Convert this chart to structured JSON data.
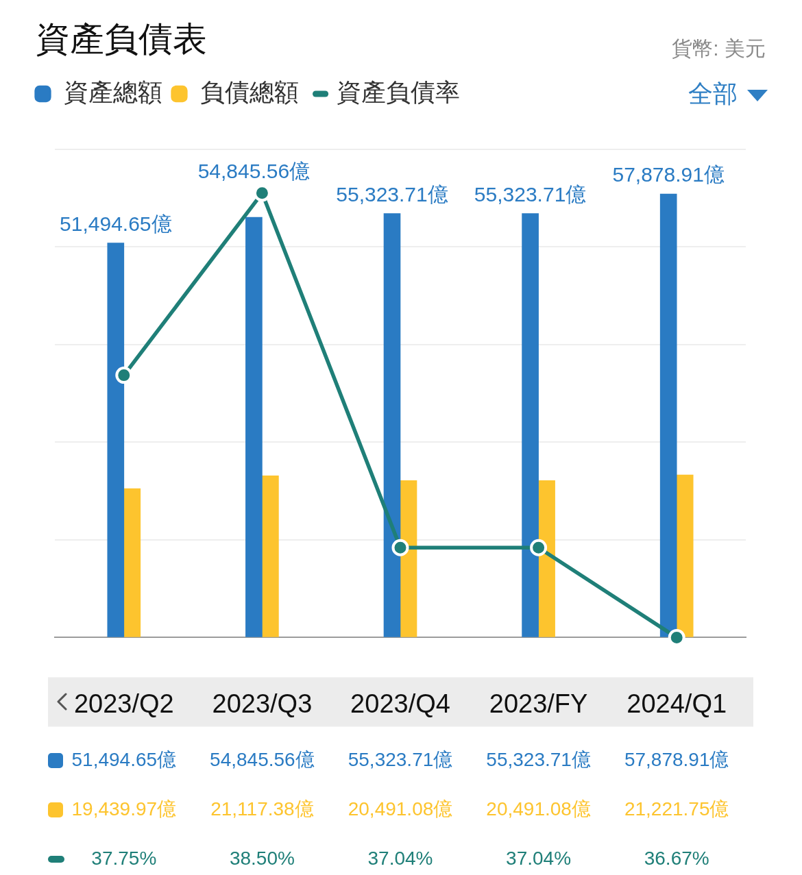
{
  "chart_data": {
    "type": "bar",
    "title": "資產負債表",
    "subtitle": "貨幣: 美元",
    "categories": [
      "2023/Q2",
      "2023/Q3",
      "2023/Q4",
      "2023/FY",
      "2024/Q1"
    ],
    "series": [
      {
        "name": "資產總額",
        "color": "#2a7bc3",
        "values": [
          51494.65,
          54845.56,
          55323.71,
          55323.71,
          57878.91
        ],
        "value_labels": [
          "51,494.65億",
          "54,845.56億",
          "55,323.71億",
          "55,323.71億",
          "57,878.91億"
        ]
      },
      {
        "name": "負債總額",
        "color": "#fdc42e",
        "values": [
          19439.97,
          21117.38,
          20491.08,
          20491.08,
          21221.75
        ],
        "value_labels": [
          "19,439.97億",
          "21,117.38億",
          "20,491.08億",
          "20,491.08億",
          "21,221.75億"
        ]
      },
      {
        "name": "資產負債率",
        "type": "line",
        "axis": "y2",
        "color": "#1f7f78",
        "values": [
          37.75,
          38.5,
          37.04,
          37.04,
          36.67
        ],
        "value_labels": [
          "37.75%",
          "38.50%",
          "37.04%",
          "37.04%",
          "36.67%"
        ]
      }
    ],
    "ylim": [
      0,
      63700
    ],
    "yticks": [
      {
        "value": 0,
        "label": null
      },
      {
        "value": 12740,
        "label": null
      },
      {
        "value": 25480,
        "label": null
      },
      {
        "value": 38220,
        "label": null
      },
      {
        "value": 50960,
        "label": null
      },
      {
        "value": 63700,
        "label": null
      }
    ],
    "y2lim": [
      36.67,
      38.68
    ],
    "grid": "y",
    "legend": "top left",
    "tick_labels": "x",
    "marker": "circle",
    "annotations": [
      {
        "text": "51,494.65億",
        "x": "2023/Q2",
        "y": 51494.65
      },
      {
        "text": "54,845.56億",
        "x": "2023/Q3",
        "y": 54845.56
      },
      {
        "text": "55,323.71億",
        "x": "2023/Q4",
        "y": 55323.71
      },
      {
        "text": "55,323.71億",
        "x": "2023/FY",
        "y": 55323.71
      },
      {
        "text": "57,878.91億",
        "x": "2024/Q1",
        "y": 57878.91
      },
      "全部"
    ]
  }
}
